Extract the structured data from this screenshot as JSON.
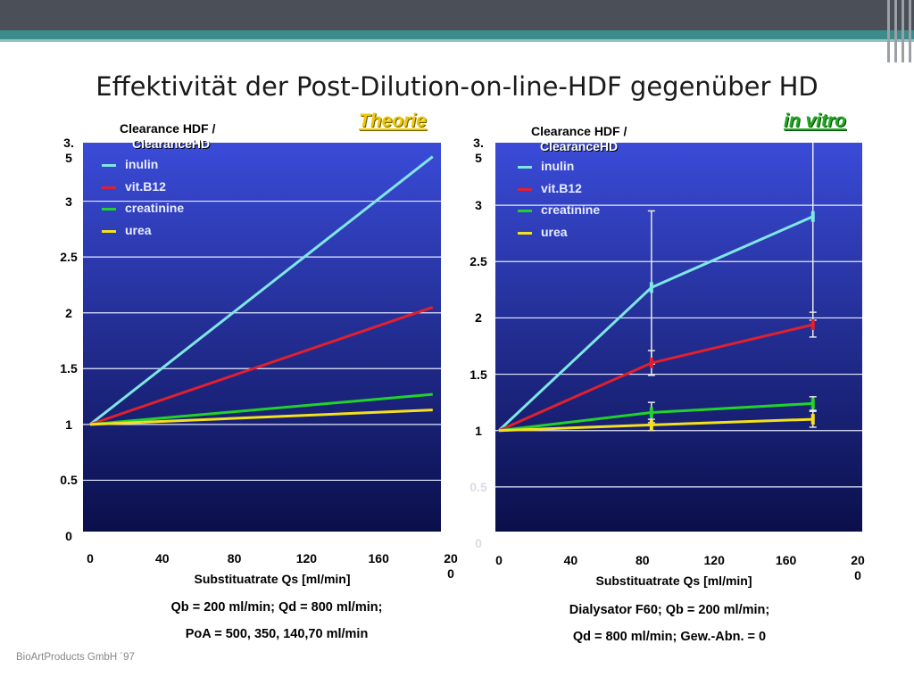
{
  "slide_title": "Effektivität der Post-Dilution-on-line-HDF gegenüber HD",
  "footer": "BioArtProducts GmbH ´97",
  "tags": {
    "left": "Theorie",
    "right": "in vitro"
  },
  "charts": {
    "left": {
      "title_line1": "Clearance HDF /",
      "title_line2": "ClearanceHD",
      "y_ticks": [
        "3.\n5",
        "3",
        "2.5",
        "2",
        "1.5",
        "1",
        "0.5",
        "0"
      ],
      "x_ticks": [
        "0",
        "40",
        "80",
        "120",
        "160",
        "20\n0"
      ],
      "xlabel": "Substituatrate Qs [ml/min]",
      "note1": "Qb = 200 ml/min; Qd = 800 ml/min;",
      "note2": "PoA = 500, 350, 140,70 ml/min",
      "legend": [
        "inulin",
        "vit.B12",
        "creatinine",
        "urea"
      ]
    },
    "right": {
      "title_line1": "Clearance HDF /",
      "title_line2": "ClearanceHD",
      "y_ticks": [
        "3.\n5",
        "3",
        "2.5",
        "2",
        "1.5",
        "1",
        "0.5",
        "0"
      ],
      "x_ticks": [
        "0",
        "40",
        "80",
        "120",
        "160",
        "20\n0"
      ],
      "xlabel": "Substituatrate Qs [ml/min]",
      "note1": "Dialysator F60; Qb = 200 ml/min;",
      "note2": "Qd = 800 ml/min; Gew.-Abn. = 0",
      "legend": [
        "inulin",
        "vit.B12",
        "creatinine",
        "urea"
      ]
    }
  },
  "colors": {
    "inulin": "#7fe6e6",
    "vit.B12": "#e0202e",
    "creatinine": "#22d22c",
    "urea": "#f4e01c",
    "plot_top": "#3a4bd8",
    "plot_bottom": "#0a0f4a"
  },
  "chart_data": [
    {
      "type": "line",
      "x": [
        0,
        190
      ],
      "xlim": [
        0,
        200
      ],
      "ylim": [
        0,
        3.5
      ],
      "grid": true,
      "legend_position": "top-left",
      "series": [
        {
          "name": "inulin",
          "x": [
            0,
            190
          ],
          "y": [
            1.0,
            3.4
          ]
        },
        {
          "name": "vit.B12",
          "x": [
            0,
            190
          ],
          "y": [
            1.0,
            2.05
          ]
        },
        {
          "name": "creatinine",
          "x": [
            0,
            190
          ],
          "y": [
            1.0,
            1.27
          ]
        },
        {
          "name": "urea",
          "x": [
            0,
            190
          ],
          "y": [
            1.0,
            1.13
          ]
        }
      ]
    },
    {
      "type": "line",
      "xlim": [
        0,
        200
      ],
      "ylim": [
        0,
        3.5
      ],
      "grid": true,
      "legend_position": "top-left",
      "series": [
        {
          "name": "inulin",
          "x": [
            0,
            85,
            175
          ],
          "y": [
            1.0,
            2.27,
            2.9
          ],
          "err": [
            0,
            0.68,
            0.92
          ]
        },
        {
          "name": "vit.B12",
          "x": [
            0,
            85,
            175
          ],
          "y": [
            1.0,
            1.6,
            1.94
          ],
          "err": [
            0,
            0.11,
            0.11
          ]
        },
        {
          "name": "creatinine",
          "x": [
            0,
            85,
            175
          ],
          "y": [
            1.0,
            1.16,
            1.24
          ],
          "err": [
            0,
            0.09,
            0.06
          ]
        },
        {
          "name": "urea",
          "x": [
            0,
            85,
            175
          ],
          "y": [
            1.0,
            1.05,
            1.1
          ],
          "err": [
            0,
            0.05,
            0.07
          ]
        }
      ]
    }
  ]
}
